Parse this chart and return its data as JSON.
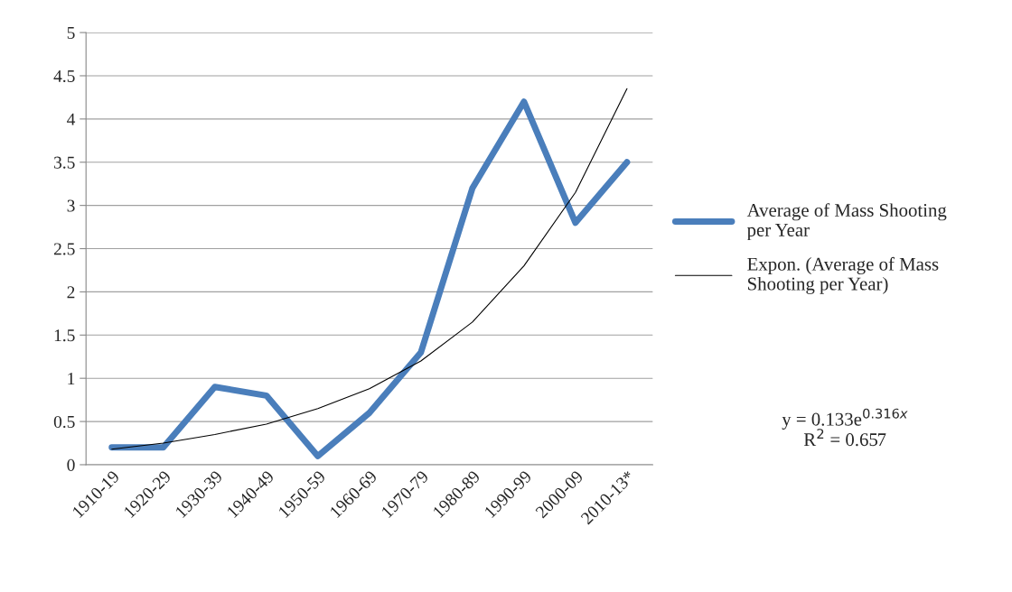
{
  "chart_data": {
    "type": "line",
    "categories": [
      "1910-19",
      "1920-29",
      "1930-39",
      "1940-49",
      "1950-59",
      "1960-69",
      "1970-79",
      "1980-89",
      "1990-99",
      "2000-09",
      "2010-13*"
    ],
    "series": [
      {
        "name": "Average of Mass Shooting per Year",
        "color": "#4a7ebb",
        "values": [
          0.2,
          0.2,
          0.9,
          0.8,
          0.1,
          0.6,
          1.3,
          3.2,
          4.2,
          2.8,
          3.5
        ]
      },
      {
        "name": "Expon. (Average of Mass Shooting per Year)",
        "color": "#000000",
        "values": [
          0.18,
          0.25,
          0.35,
          0.47,
          0.65,
          0.88,
          1.2,
          1.65,
          2.3,
          3.15,
          4.35
        ]
      }
    ],
    "ylim": [
      0,
      5
    ],
    "yticks": [
      0,
      0.5,
      1,
      1.5,
      2,
      2.5,
      3,
      3.5,
      4,
      4.5,
      5
    ],
    "grid": "y",
    "legend": "right",
    "marker": "none",
    "line_style": "solid",
    "annotations": [
      "y = 0.133e$^{0.316x}$\nR$^{2}$ = 0.657"
    ]
  }
}
